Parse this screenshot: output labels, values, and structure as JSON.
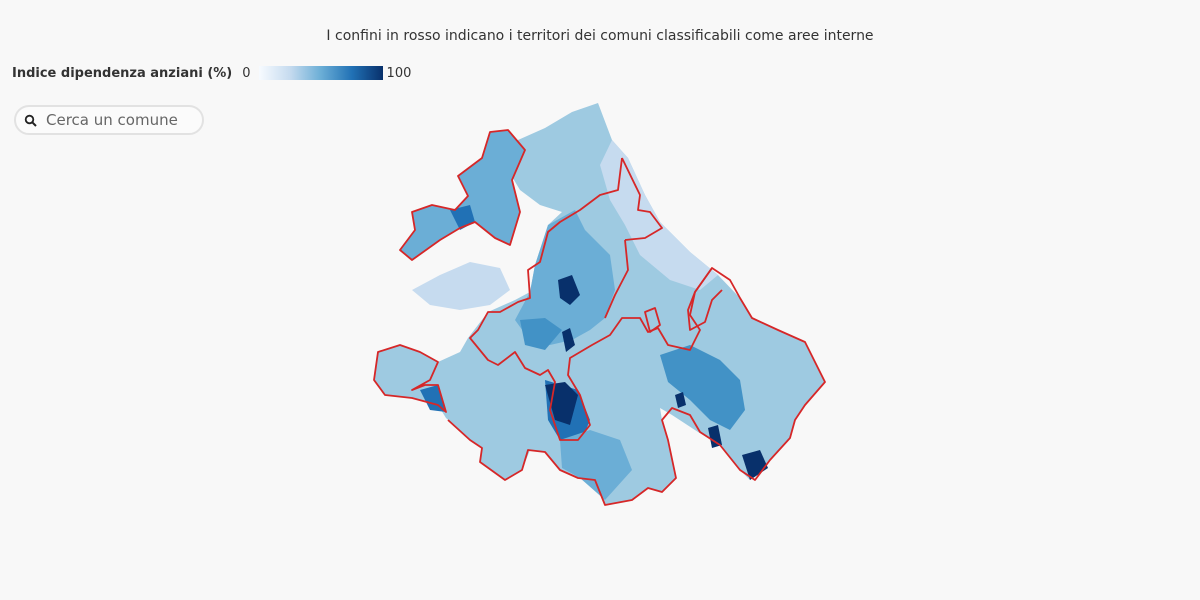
{
  "header": {
    "subtitle": "I confini in rosso indicano i territori dei comuni classificabili come aree interne"
  },
  "legend": {
    "title": "Indice dipendenza anziani (%)",
    "min_label": "0",
    "max_label": "100",
    "color_low": "#f7fbff",
    "color_high": "#08306b"
  },
  "search": {
    "placeholder": "Cerca un comune",
    "value": ""
  },
  "map": {
    "region_fill_palette": [
      "#c6dbef",
      "#9ecae1",
      "#6baed6",
      "#4292c6",
      "#2171b5",
      "#08306b"
    ],
    "inner_area_border_color": "#d62728"
  }
}
